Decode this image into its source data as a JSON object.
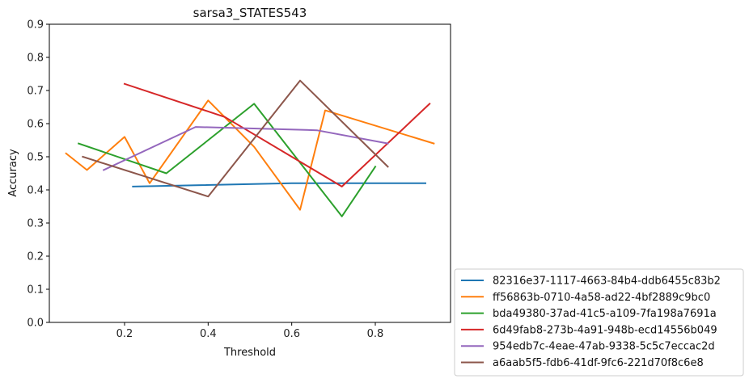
{
  "chart_data": {
    "type": "line",
    "title": "sarsa3_STATES543",
    "xlabel": "Threshold",
    "ylabel": "Accuracy",
    "xlim": [
      0.02,
      0.98
    ],
    "ylim": [
      0.0,
      0.9
    ],
    "xticks": [
      "0.2",
      "0.4",
      "0.6",
      "0.8"
    ],
    "yticks": [
      "0.0",
      "0.1",
      "0.2",
      "0.3",
      "0.4",
      "0.5",
      "0.6",
      "0.7",
      "0.8",
      "0.9"
    ],
    "grid": false,
    "legend_position": "outside-lower-right",
    "series": [
      {
        "name": "82316e37-1117-4663-84b4-ddb6455c83b2",
        "color": "#1f77b4",
        "x": [
          0.22,
          0.6,
          0.92
        ],
        "y": [
          0.41,
          0.42,
          0.42
        ]
      },
      {
        "name": "ff56863b-0710-4a58-ad22-4bf2889c9bc0",
        "color": "#ff7f0e",
        "x": [
          0.06,
          0.11,
          0.2,
          0.26,
          0.4,
          0.51,
          0.62,
          0.68,
          0.94
        ],
        "y": [
          0.51,
          0.46,
          0.56,
          0.42,
          0.67,
          0.53,
          0.34,
          0.64,
          0.54
        ]
      },
      {
        "name": "bda49380-37ad-41c5-a109-7fa198a7691a",
        "color": "#2ca02c",
        "x": [
          0.09,
          0.3,
          0.51,
          0.72,
          0.8
        ],
        "y": [
          0.54,
          0.45,
          0.66,
          0.32,
          0.47
        ]
      },
      {
        "name": "6d49fab8-273b-4a91-948b-ecd14556b049",
        "color": "#d62728",
        "x": [
          0.2,
          0.44,
          0.72,
          0.93
        ],
        "y": [
          0.72,
          0.62,
          0.41,
          0.66
        ]
      },
      {
        "name": "954edb7c-4eae-47ab-9338-5c5c7eccac2d",
        "color": "#9467bd",
        "x": [
          0.15,
          0.37,
          0.66,
          0.83
        ],
        "y": [
          0.46,
          0.59,
          0.58,
          0.54
        ]
      },
      {
        "name": "a6aab5f5-fdb6-41df-9fc6-221d70f8c6e8",
        "color": "#8c564b",
        "x": [
          0.1,
          0.4,
          0.62,
          0.83
        ],
        "y": [
          0.5,
          0.38,
          0.73,
          0.47
        ]
      }
    ]
  }
}
